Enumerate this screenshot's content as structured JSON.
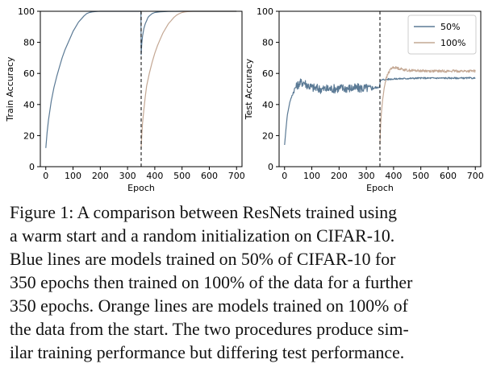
{
  "chart_data": [
    {
      "type": "line",
      "xlabel": "Epoch",
      "ylabel": "Train Accuracy",
      "xlim": [
        -20,
        720
      ],
      "ylim": [
        0,
        100
      ],
      "xticks": [
        "0",
        "100",
        "200",
        "300",
        "400",
        "500",
        "600",
        "700"
      ],
      "yticks": [
        "0",
        "20",
        "40",
        "60",
        "80",
        "100"
      ],
      "vline_epoch": 350,
      "grid": false,
      "series": [
        {
          "color": "#5b7a95",
          "x": [
            0,
            5,
            10,
            20,
            30,
            40,
            50,
            60,
            70,
            80,
            90,
            100,
            110,
            120,
            130,
            140,
            150,
            160,
            170,
            180,
            190,
            200,
            220,
            250,
            300,
            349,
            350,
            352,
            355,
            360,
            365,
            370,
            375,
            380,
            390,
            400,
            420,
            450,
            500,
            600,
            700
          ],
          "y": [
            12,
            22,
            30,
            42,
            51,
            58,
            64,
            70,
            75,
            79,
            83,
            87,
            90,
            93,
            95,
            97,
            98.5,
            99.2,
            99.6,
            99.8,
            99.9,
            100,
            100,
            100,
            100,
            100,
            72,
            79,
            84,
            89,
            92,
            94,
            96,
            97,
            98.5,
            99.2,
            99.7,
            99.9,
            100,
            100,
            100
          ]
        },
        {
          "color": "#c4a894",
          "x": [
            350,
            352,
            355,
            360,
            365,
            370,
            380,
            390,
            400,
            410,
            420,
            430,
            440,
            450,
            460,
            470,
            480,
            490,
            500,
            510,
            520,
            540,
            560,
            600,
            650,
            700
          ],
          "y": [
            12,
            20,
            28,
            37,
            45,
            52,
            60,
            67,
            73,
            78,
            82,
            86,
            89,
            92,
            94,
            96,
            97.5,
            98.5,
            99.2,
            99.6,
            99.8,
            100,
            100,
            100,
            100,
            100
          ]
        }
      ]
    },
    {
      "type": "line",
      "xlabel": "Epoch",
      "ylabel": "Test Accuracy",
      "xlim": [
        -20,
        720
      ],
      "ylim": [
        0,
        100
      ],
      "xticks": [
        "0",
        "100",
        "200",
        "300",
        "400",
        "500",
        "600",
        "700"
      ],
      "yticks": [
        "0",
        "20",
        "40",
        "60",
        "80",
        "100"
      ],
      "vline_epoch": 350,
      "grid": false,
      "legend_position": "top-right",
      "series": [
        {
          "name": "50%",
          "color": "#5b7a95",
          "noise": [
            0,
            0,
            0,
            0,
            1,
            2,
            3,
            3,
            3,
            3,
            3,
            3,
            3,
            3,
            3,
            3,
            0,
            0.5,
            0.5,
            0.5,
            0.5,
            0.5,
            0.5
          ],
          "x": [
            0,
            5,
            10,
            20,
            30,
            40,
            50,
            60,
            70,
            80,
            100,
            130,
            160,
            200,
            250,
            300,
            349,
            350,
            355,
            360,
            400,
            500,
            700
          ],
          "y": [
            14,
            24,
            33,
            42,
            47,
            51,
            53,
            54,
            54.5,
            53,
            51,
            50,
            50,
            50.5,
            50.5,
            50.5,
            51,
            55,
            55.5,
            56,
            56.5,
            57,
            57
          ]
        },
        {
          "name": "100%",
          "color": "#c4a894",
          "noise": [
            0,
            0,
            0,
            0,
            0,
            1,
            1,
            0.8,
            0.8,
            0.8,
            0.8,
            0.8
          ],
          "x": [
            350,
            352,
            355,
            360,
            365,
            370,
            380,
            390,
            400,
            450,
            550,
            700
          ],
          "y": [
            14,
            25,
            34,
            43,
            50,
            55,
            60,
            63,
            64,
            62,
            61.5,
            61.5
          ]
        }
      ]
    }
  ],
  "caption": {
    "lines": [
      "Figure 1: A comparison between ResNets trained using",
      "a warm start and a random initialization on CIFAR-10.",
      "Blue lines are models trained on 50% of CIFAR-10 for",
      "350 epochs then trained on 100% of the data for a further",
      "350 epochs. Orange lines are models trained on 100% of",
      "the data from the start. The two procedures produce sim-",
      "ilar training performance but differing test performance."
    ]
  }
}
